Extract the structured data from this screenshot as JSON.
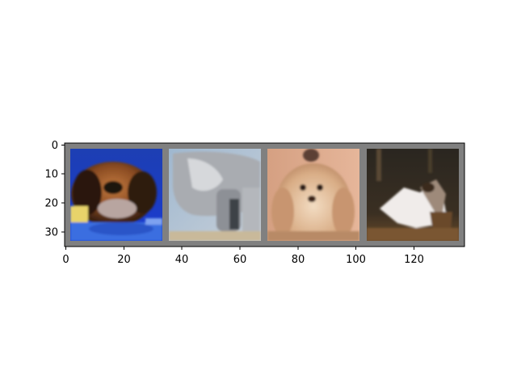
{
  "figure": {
    "background": "#ffffff",
    "grid_border_color": "#808080"
  },
  "image_grid": {
    "layout": "1 row × 4 tiles, 32×32 px thumbnails separated by 2 px grey padding",
    "tiles": [
      {
        "id": 1,
        "content": "dog with brown and black fur lying on a blue blanket"
      },
      {
        "id": 2,
        "content": "grey animal on a pale blue background"
      },
      {
        "id": 3,
        "content": "fluffy light-colored long-haired dog sitting"
      },
      {
        "id": 4,
        "content": "calico cat playing, dark background"
      }
    ]
  },
  "chart_data": {
    "type": "image",
    "x_ticks": [
      "0",
      "20",
      "40",
      "60",
      "80",
      "100",
      "120"
    ],
    "x_tick_values": [
      0,
      20,
      40,
      60,
      80,
      100,
      120
    ],
    "y_ticks": [
      "0",
      "10",
      "20",
      "30"
    ],
    "y_tick_values": [
      0,
      10,
      20,
      30
    ],
    "xlim": [
      -0.5,
      137.5
    ],
    "ylim": [
      35.5,
      -0.5
    ],
    "grid": false,
    "title": "",
    "xlabel": "",
    "ylabel": ""
  }
}
